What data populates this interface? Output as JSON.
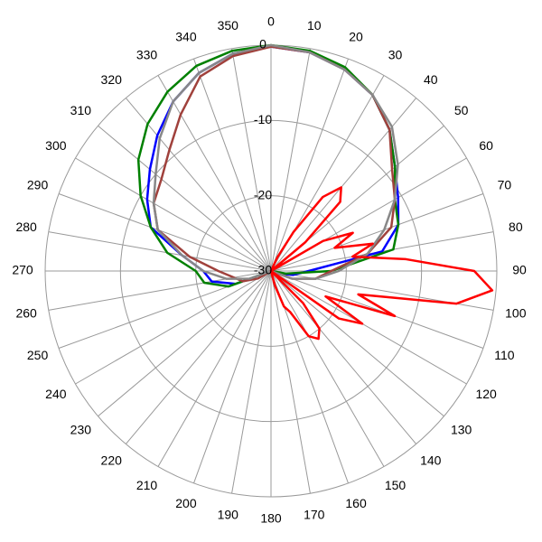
{
  "chart_data": {
    "type": "polar",
    "rlim": [
      -30,
      0
    ],
    "rticks": [
      -30,
      -20,
      -10,
      0
    ],
    "thetaticks": [
      0,
      10,
      20,
      30,
      40,
      50,
      60,
      70,
      80,
      90,
      100,
      110,
      120,
      130,
      140,
      150,
      160,
      170,
      180,
      190,
      200,
      210,
      220,
      230,
      240,
      250,
      260,
      270,
      280,
      290,
      300,
      310,
      320,
      330,
      340,
      350
    ],
    "theta": [
      0,
      10,
      20,
      30,
      40,
      50,
      60,
      70,
      80,
      90,
      100,
      110,
      120,
      130,
      140,
      150,
      160,
      170,
      180,
      190,
      200,
      210,
      220,
      230,
      240,
      250,
      260,
      270,
      280,
      290,
      300,
      310,
      320,
      330,
      340,
      350
    ],
    "grid": true,
    "series": [
      {
        "color": "#0000ff",
        "values": [
          -0.2,
          -0.5,
          -1.5,
          -3,
          -5.5,
          -8.5,
          -10.5,
          -12,
          -15,
          -25,
          -27,
          -29,
          -30,
          -30,
          -30,
          -30,
          -30,
          -30,
          -30,
          -30,
          -30,
          -30,
          -30,
          -30,
          -30,
          -25,
          -22,
          -21,
          -18,
          -13,
          -11,
          -9,
          -6.5,
          -4,
          -2,
          -0.7
        ]
      },
      {
        "color": "#008000",
        "values": [
          0,
          -0.3,
          -1.2,
          -3,
          -5.5,
          -8.5,
          -11,
          -12,
          -13.5,
          -22,
          -28,
          -30,
          -30,
          -30,
          -30,
          -30,
          -30,
          -30,
          -30,
          -30,
          -30,
          -30,
          -30,
          -30,
          -30,
          -24,
          -21,
          -20,
          -16,
          -13,
          -10,
          -7,
          -4.5,
          -2.5,
          -1,
          -0.3
        ]
      },
      {
        "color": "#a0413c",
        "values": [
          -0.2,
          -0.5,
          -1.5,
          -3,
          -5.5,
          -9,
          -11,
          -13,
          -17,
          -22,
          -24,
          -27,
          -30,
          -30,
          -30,
          -30,
          -30,
          -30,
          -30,
          -30,
          -30,
          -30,
          -30,
          -30,
          -28,
          -26,
          -25,
          -23,
          -19,
          -14,
          -12,
          -11,
          -9,
          -6,
          -2.5,
          -1
        ]
      },
      {
        "color": "#888888",
        "values": [
          0,
          -0.5,
          -1.5,
          -3,
          -5,
          -8,
          -11,
          -14,
          -17,
          -21,
          -24,
          -27,
          -30,
          -30,
          -30,
          -30,
          -30,
          -30,
          -30,
          -30,
          -30,
          -30,
          -30,
          -30,
          -30,
          -27,
          -24,
          -21,
          -18,
          -14,
          -12,
          -10,
          -7,
          -4,
          -2,
          -0.7
        ]
      },
      {
        "color": "#ff0000",
        "theta": [
          0,
          5,
          10,
          15,
          20,
          25,
          30,
          35,
          40,
          45,
          50,
          55,
          60,
          65,
          70,
          75,
          80,
          85,
          90,
          95,
          100,
          105,
          110,
          115,
          120,
          125,
          130,
          135,
          140,
          145,
          150,
          155,
          160,
          165,
          170,
          175,
          180,
          185,
          190,
          195,
          200,
          205,
          210,
          215,
          220,
          225,
          230,
          235,
          240,
          245,
          250,
          255,
          260,
          265,
          270,
          275,
          280,
          285,
          290,
          295,
          300,
          305,
          310,
          315,
          320,
          325,
          330,
          335,
          340,
          345,
          350,
          355
        ],
        "values": [
          -30,
          -30,
          -30,
          -30,
          -30,
          -28,
          -24,
          -18,
          -15.5,
          -17,
          -24,
          -30,
          -22,
          -18,
          -21,
          -16,
          -19,
          -12,
          -3,
          -0.5,
          -5,
          -18,
          -12.5,
          -22,
          -16,
          -19,
          -30,
          -24,
          -20,
          -19,
          -20,
          -24,
          -25,
          -28,
          -30,
          -30,
          -30,
          -30,
          -30,
          -30,
          -30,
          -30,
          -30,
          -30,
          -30,
          -30,
          -30,
          -30,
          -30,
          -30,
          -30,
          -30,
          -30,
          -30,
          -30,
          -30,
          -30,
          -30,
          -30,
          -30,
          -30,
          -30,
          -30,
          -30,
          -30,
          -30,
          -30,
          -30,
          -30,
          -30,
          -30,
          -30
        ]
      }
    ]
  }
}
